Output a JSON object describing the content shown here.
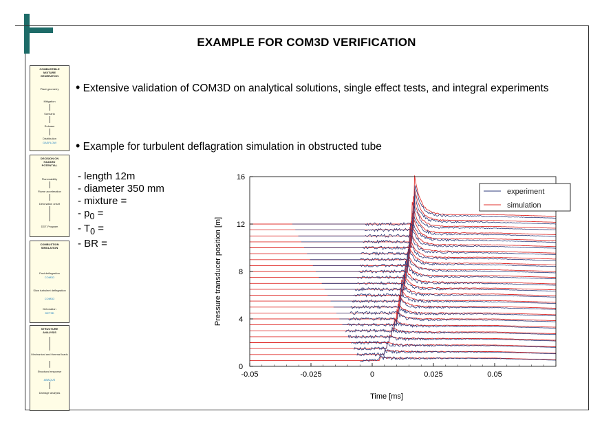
{
  "slide": {
    "title": "EXAMPLE FOR COM3D VERIFICATION"
  },
  "bullets": [
    {
      "text": "Extensive validation of COM3D on analytical solutions, single effect tests, and integral experiments"
    },
    {
      "text": "Example for turbulent deflagration simulation in obstructed tube"
    }
  ],
  "params": [
    {
      "label": "length 12m"
    },
    {
      "label": "diameter 350 mm"
    },
    {
      "label": "mixture ="
    },
    {
      "label": "p",
      "sub": "0",
      "suffix": " ="
    },
    {
      "label": "T",
      "sub": "0",
      "suffix": " ="
    },
    {
      "label": "BR ="
    }
  ],
  "sidebar": {
    "box1_lines": [
      "COMBUSTIBLE",
      "MIXTURE",
      "GENERATION"
    ],
    "box1_items": [
      "Plant geometry",
      "Mitigation",
      "Scenario",
      "Release",
      "Distribution",
      "GASFLOW"
    ],
    "box2_lines": [
      "DECISION ON",
      "HAZARD",
      "POTENTIAL"
    ],
    "box2_items": [
      "Flammability",
      "Flame acceleration",
      "Detonation onset",
      "DDT-Program"
    ],
    "box3_lines": [
      "COMBUSTION",
      "SIMULATION"
    ],
    "box3_items": [
      {
        "label": "Fast deflagration",
        "code": "COM3D"
      },
      {
        "label": "Slow turbulent deflagration",
        "code": "COM3D"
      },
      {
        "label": "Detonation",
        "code": "DET3D"
      }
    ],
    "box4_lines": [
      "STRUCTURE",
      "ANALYSIS"
    ],
    "box4_items": [
      {
        "label": "Mechanical and thermal loads",
        "code": ""
      },
      {
        "label": "Structural response",
        "code": "ABAQUS"
      },
      {
        "label": "Damage analysis",
        "code": ""
      }
    ]
  },
  "chart_data": {
    "type": "line",
    "title": "",
    "xlabel": "Time [ms]",
    "ylabel": "Pressure transducer position [m]",
    "xlim": [
      -0.05,
      0.075
    ],
    "ylim": [
      0,
      16
    ],
    "xticks": [
      -0.05,
      -0.025,
      0,
      0.025,
      0.05
    ],
    "xtick_labels": [
      "-0.05",
      "-0.025",
      "0",
      "0.025",
      "0.05"
    ],
    "yticks": [
      0,
      4,
      8,
      12,
      16
    ],
    "ytick_labels": [
      "0",
      "4",
      "8",
      "12",
      "16"
    ],
    "legend": {
      "placement": "top-right"
    },
    "series": [
      {
        "name": "experiment",
        "color": "#2b3a7a"
      },
      {
        "name": "simulation",
        "color": "#e0302e"
      }
    ],
    "transducer_positions_m": [
      0.5,
      1.0,
      1.5,
      2.0,
      2.5,
      3.0,
      3.5,
      4.0,
      4.5,
      5.0,
      5.5,
      6.0,
      6.5,
      7.0,
      7.5,
      8.0,
      8.5,
      9.0,
      9.5,
      10.0,
      10.5,
      11.0,
      11.5,
      12.0
    ],
    "arrival_time_ms": [
      0.003,
      0.005,
      0.006,
      0.007,
      0.008,
      0.009,
      0.01,
      0.0105,
      0.011,
      0.0115,
      0.012,
      0.0125,
      0.013,
      0.0135,
      0.014,
      0.0145,
      0.015,
      0.0153,
      0.0156,
      0.016,
      0.0163,
      0.0166,
      0.017,
      0.0172
    ],
    "peak_amplitude_m": [
      0.3,
      0.4,
      0.5,
      0.6,
      0.8,
      1.0,
      1.2,
      1.3,
      1.5,
      1.6,
      1.8,
      2.0,
      2.1,
      2.2,
      2.4,
      2.5,
      2.6,
      2.8,
      3.0,
      3.2,
      3.4,
      3.6,
      3.8,
      4.2
    ],
    "plateau_m": [
      0.2,
      0.25,
      0.3,
      0.35,
      0.4,
      0.45,
      0.5,
      0.5,
      0.55,
      0.55,
      0.6,
      0.6,
      0.6,
      0.65,
      0.65,
      0.7,
      0.7,
      0.7,
      0.75,
      0.75,
      0.75,
      0.8,
      0.8,
      0.8
    ]
  },
  "colors": {
    "accent": "#1d6b68",
    "experiment": "#2b3a7a",
    "simulation": "#e0302e",
    "sidebar_code": "#1a7fc0"
  }
}
